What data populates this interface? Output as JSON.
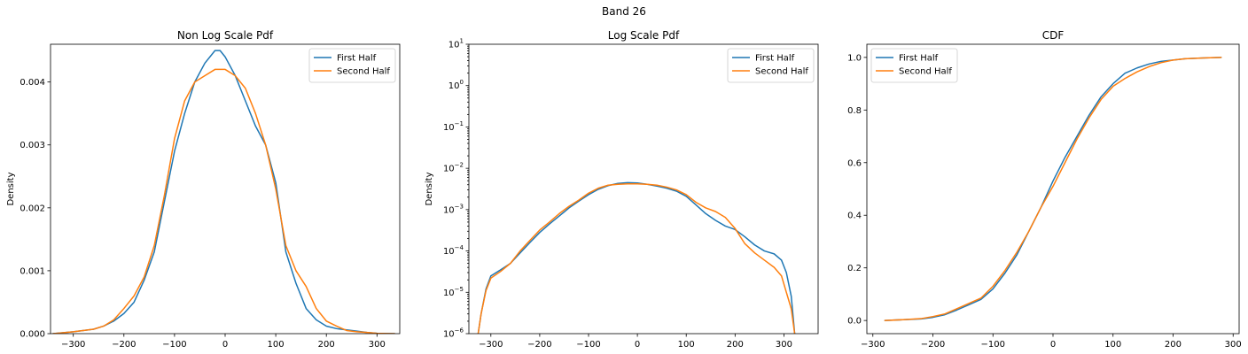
{
  "figure": {
    "title": "Band 26"
  },
  "colors": {
    "first": "#1f77b4",
    "second": "#ff7f0e"
  },
  "chart_data": [
    {
      "type": "line",
      "title": "Non Log Scale Pdf",
      "xlabel": "",
      "ylabel": "Density",
      "xlim": [
        -345,
        345
      ],
      "ylim": [
        0,
        0.0046
      ],
      "yscale": "linear",
      "x_ticks": [
        -300,
        -200,
        -100,
        0,
        100,
        200,
        300
      ],
      "x_tick_labels": [
        "−300",
        "−200",
        "−100",
        "0",
        "100",
        "200",
        "300"
      ],
      "y_ticks": [
        0,
        0.001,
        0.002,
        0.003,
        0.004
      ],
      "y_tick_labels": [
        "0.000",
        "0.001",
        "0.002",
        "0.003",
        "0.004"
      ],
      "grid": false,
      "legend_position": "top-right",
      "series": [
        {
          "name": "First Half",
          "x": [
            -340,
            -300,
            -260,
            -240,
            -220,
            -200,
            -180,
            -160,
            -140,
            -120,
            -100,
            -80,
            -60,
            -40,
            -20,
            -10,
            0,
            20,
            40,
            60,
            80,
            100,
            120,
            140,
            160,
            180,
            200,
            220,
            240,
            260,
            280,
            300,
            320,
            335
          ],
          "y": [
            0.0,
            3e-05,
            7e-05,
            0.00012,
            0.0002,
            0.00032,
            0.0005,
            0.00085,
            0.0013,
            0.0021,
            0.0029,
            0.0035,
            0.004,
            0.0043,
            0.0045,
            0.0045,
            0.0044,
            0.0041,
            0.0037,
            0.0033,
            0.003,
            0.0024,
            0.0013,
            0.0008,
            0.0004,
            0.00022,
            0.00012,
            8e-05,
            6e-05,
            4e-05,
            2e-05,
            5e-06,
            1e-06,
            0.0
          ]
        },
        {
          "name": "Second Half",
          "x": [
            -340,
            -300,
            -260,
            -240,
            -220,
            -200,
            -180,
            -160,
            -140,
            -120,
            -100,
            -80,
            -60,
            -40,
            -20,
            0,
            20,
            40,
            60,
            80,
            100,
            120,
            140,
            160,
            180,
            200,
            220,
            240,
            260,
            280,
            300,
            320,
            335
          ],
          "y": [
            0.0,
            3e-05,
            7e-05,
            0.00012,
            0.00022,
            0.0004,
            0.0006,
            0.0009,
            0.0014,
            0.0022,
            0.0031,
            0.0037,
            0.004,
            0.0041,
            0.0042,
            0.0042,
            0.0041,
            0.0039,
            0.0035,
            0.003,
            0.0023,
            0.0014,
            0.001,
            0.00075,
            0.0004,
            0.0002,
            0.00012,
            5e-05,
            3e-05,
            2e-05,
            5e-06,
            1e-06,
            0.0
          ]
        }
      ]
    },
    {
      "type": "line",
      "title": "Log Scale Pdf",
      "xlabel": "",
      "ylabel": "Density",
      "xlim": [
        -345,
        370
      ],
      "ylim": [
        1e-06,
        10
      ],
      "yscale": "log",
      "x_ticks": [
        -300,
        -200,
        -100,
        0,
        100,
        200,
        300
      ],
      "x_tick_labels": [
        "−300",
        "−200",
        "−100",
        "0",
        "100",
        "200",
        "300"
      ],
      "y_ticks": [
        1e-06,
        1e-05,
        0.0001,
        0.001,
        0.01,
        0.1,
        1,
        10
      ],
      "y_tick_labels": [
        {
          "base": "10",
          "exp": "−6"
        },
        {
          "base": "10",
          "exp": "−5"
        },
        {
          "base": "10",
          "exp": "−4"
        },
        {
          "base": "10",
          "exp": "−3"
        },
        {
          "base": "10",
          "exp": "−2"
        },
        {
          "base": "10",
          "exp": "−1"
        },
        {
          "base": "10",
          "exp": "0"
        },
        {
          "base": "10",
          "exp": "1"
        }
      ],
      "grid": false,
      "legend_position": "top-right",
      "series": [
        {
          "name": "First Half",
          "x": [
            -326,
            -320,
            -310,
            -300,
            -280,
            -260,
            -240,
            -220,
            -200,
            -180,
            -160,
            -140,
            -120,
            -100,
            -80,
            -60,
            -40,
            -20,
            0,
            20,
            40,
            60,
            80,
            100,
            120,
            140,
            160,
            180,
            200,
            220,
            240,
            260,
            280,
            295,
            305,
            315,
            322
          ],
          "y": [
            1e-06,
            3e-06,
            1.2e-05,
            2.5e-05,
            3.5e-05,
            5e-05,
            9e-05,
            0.00016,
            0.00028,
            0.00045,
            0.0007,
            0.0011,
            0.0016,
            0.0023,
            0.0031,
            0.0038,
            0.0043,
            0.0045,
            0.0044,
            0.0041,
            0.0037,
            0.0033,
            0.0028,
            0.0021,
            0.0013,
            0.0008,
            0.00055,
            0.0004,
            0.00033,
            0.00022,
            0.00014,
            0.0001,
            8.5e-05,
            6e-05,
            3e-05,
            8e-06,
            1e-06
          ]
        },
        {
          "name": "Second Half",
          "x": [
            -326,
            -320,
            -310,
            -300,
            -280,
            -260,
            -240,
            -220,
            -200,
            -180,
            -160,
            -140,
            -120,
            -100,
            -80,
            -60,
            -40,
            -20,
            0,
            20,
            40,
            60,
            80,
            100,
            120,
            140,
            160,
            180,
            200,
            220,
            240,
            260,
            280,
            295,
            305,
            315,
            322
          ],
          "y": [
            1e-06,
            3e-06,
            1.1e-05,
            2.2e-05,
            3.2e-05,
            5e-05,
            0.0001,
            0.00018,
            0.00032,
            0.0005,
            0.0008,
            0.0012,
            0.0017,
            0.0025,
            0.0033,
            0.0039,
            0.0041,
            0.0042,
            0.0042,
            0.0041,
            0.0039,
            0.0035,
            0.003,
            0.0023,
            0.0015,
            0.0011,
            0.0009,
            0.00065,
            0.00035,
            0.00015,
            9e-05,
            6e-05,
            4e-05,
            2.5e-05,
            1e-05,
            4e-06,
            1e-06
          ]
        }
      ]
    },
    {
      "type": "line",
      "title": "CDF",
      "xlabel": "",
      "ylabel": "",
      "xlim": [
        -310,
        310
      ],
      "ylim": [
        -0.05,
        1.05
      ],
      "yscale": "linear",
      "x_ticks": [
        -300,
        -200,
        -100,
        0,
        100,
        200,
        300
      ],
      "x_tick_labels": [
        "−300",
        "−200",
        "−100",
        "0",
        "100",
        "200",
        "300"
      ],
      "y_ticks": [
        0,
        0.2,
        0.4,
        0.6,
        0.8,
        1.0
      ],
      "y_tick_labels": [
        "0.0",
        "0.2",
        "0.4",
        "0.6",
        "0.8",
        "1.0"
      ],
      "grid": false,
      "legend_position": "top-left",
      "series": [
        {
          "name": "First Half",
          "x": [
            -280,
            -250,
            -220,
            -200,
            -180,
            -160,
            -140,
            -120,
            -100,
            -80,
            -60,
            -40,
            -20,
            0,
            20,
            40,
            60,
            80,
            100,
            120,
            140,
            160,
            180,
            200,
            220,
            250,
            280
          ],
          "y": [
            0.0,
            0.003,
            0.006,
            0.012,
            0.022,
            0.04,
            0.06,
            0.08,
            0.12,
            0.18,
            0.25,
            0.34,
            0.43,
            0.53,
            0.62,
            0.7,
            0.78,
            0.85,
            0.9,
            0.94,
            0.96,
            0.975,
            0.985,
            0.99,
            0.995,
            0.998,
            1.0
          ]
        },
        {
          "name": "Second Half",
          "x": [
            -280,
            -250,
            -220,
            -200,
            -180,
            -160,
            -140,
            -120,
            -100,
            -80,
            -60,
            -40,
            -20,
            0,
            20,
            40,
            60,
            80,
            100,
            120,
            140,
            160,
            180,
            200,
            220,
            250,
            280
          ],
          "y": [
            0.0,
            0.003,
            0.007,
            0.015,
            0.025,
            0.045,
            0.065,
            0.085,
            0.13,
            0.19,
            0.26,
            0.34,
            0.43,
            0.51,
            0.6,
            0.69,
            0.77,
            0.84,
            0.89,
            0.92,
            0.945,
            0.965,
            0.98,
            0.99,
            0.995,
            0.998,
            1.0
          ]
        }
      ]
    }
  ]
}
